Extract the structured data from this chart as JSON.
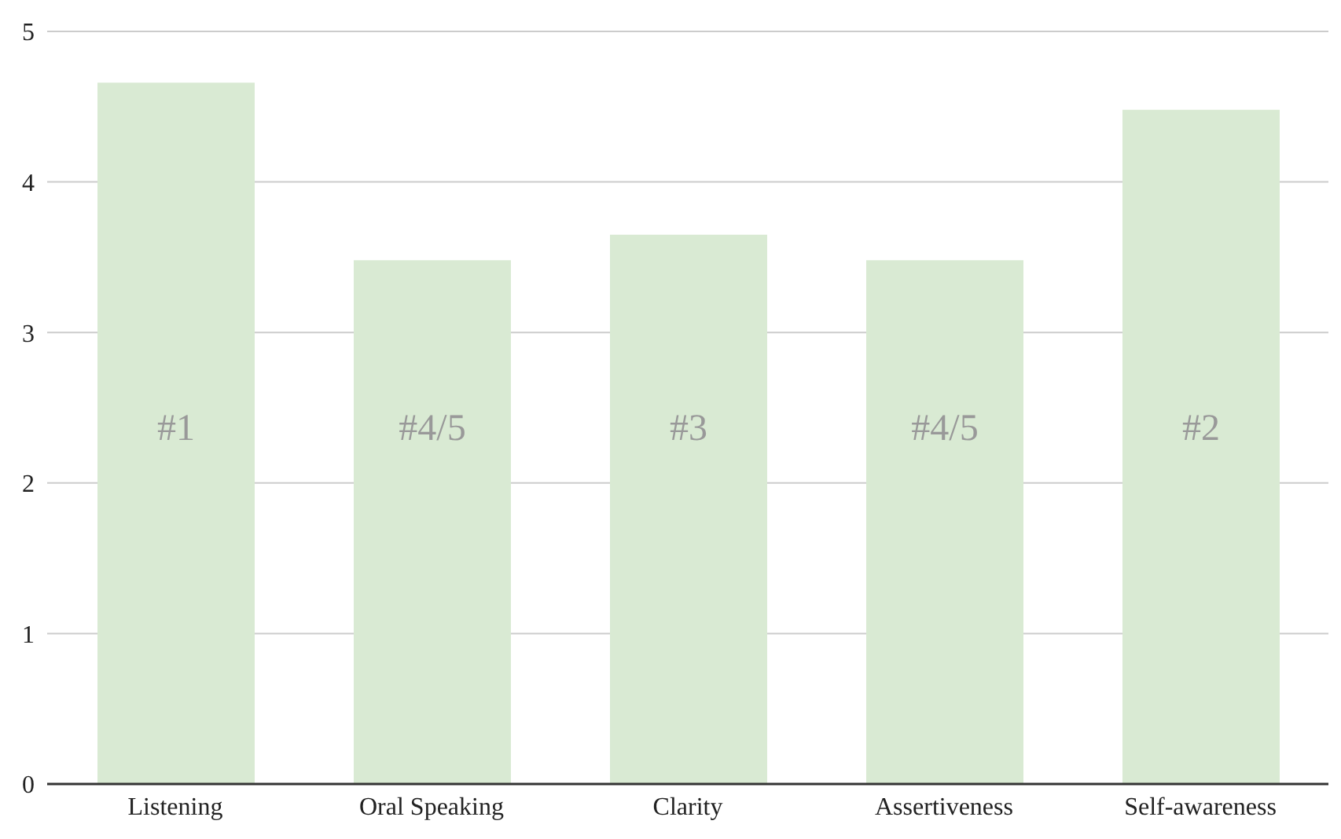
{
  "chart_data": {
    "type": "bar",
    "categories": [
      "Listening",
      "Oral Speaking",
      "Clarity",
      "Assertiveness",
      "Self-awareness"
    ],
    "values": [
      4.66,
      3.48,
      3.65,
      3.48,
      4.48
    ],
    "color": "#d9ead3",
    "annotations": [
      "#1",
      "#4/5",
      "#3",
      "#4/5",
      "#2"
    ],
    "ylim": [
      0,
      5
    ],
    "yticks": [
      0,
      1,
      2,
      3,
      4,
      5
    ],
    "grid": "y",
    "legend": false
  }
}
